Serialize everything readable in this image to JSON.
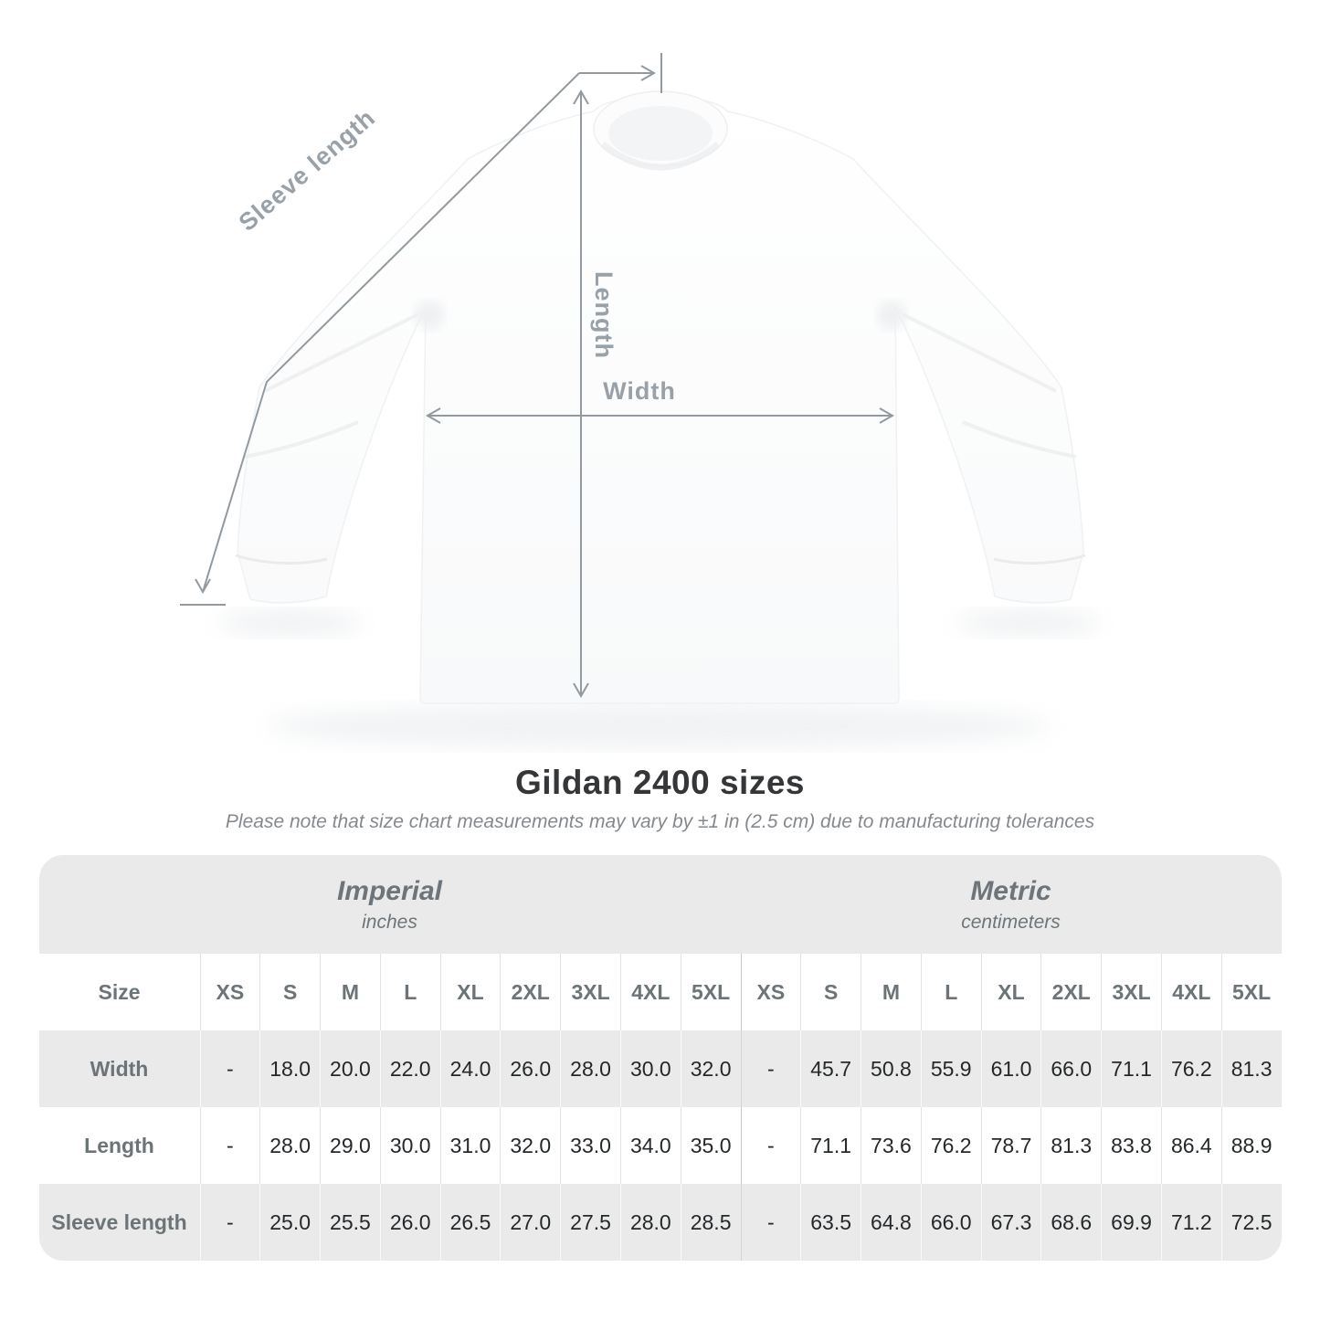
{
  "colors": {
    "measure_line": "#929aa0",
    "measure_label": "#99a1a8",
    "table_header_text": "#6c7478",
    "value_text": "#25282a",
    "band_gray": "#eaeaea",
    "title_text": "#343638",
    "subtitle_text": "#85898e"
  },
  "shirt_diagram": {
    "sleeve_length_label": "Sleeve length",
    "length_label": "Length",
    "width_label": "Width"
  },
  "header": {
    "title": "Gildan 2400 sizes",
    "subtitle": "Please note that size chart measurements may vary by ±1 in (2.5 cm) due to manufacturing tolerances"
  },
  "size_table": {
    "corner_label": "Size",
    "sections": [
      {
        "name": "Imperial",
        "unit": "inches",
        "sizes": [
          "XS",
          "S",
          "M",
          "L",
          "XL",
          "2XL",
          "3XL",
          "4XL",
          "5XL"
        ]
      },
      {
        "name": "Metric",
        "unit": "centimeters",
        "sizes": [
          "XS",
          "S",
          "M",
          "L",
          "XL",
          "2XL",
          "3XL",
          "4XL",
          "5XL"
        ]
      }
    ],
    "rows": [
      {
        "label": "Width",
        "values": [
          "-",
          "18.0",
          "20.0",
          "22.0",
          "24.0",
          "26.0",
          "28.0",
          "30.0",
          "32.0",
          "-",
          "45.7",
          "50.8",
          "55.9",
          "61.0",
          "66.0",
          "71.1",
          "76.2",
          "81.3"
        ]
      },
      {
        "label": "Length",
        "values": [
          "-",
          "28.0",
          "29.0",
          "30.0",
          "31.0",
          "32.0",
          "33.0",
          "34.0",
          "35.0",
          "-",
          "71.1",
          "73.6",
          "76.2",
          "78.7",
          "81.3",
          "83.8",
          "86.4",
          "88.9"
        ]
      },
      {
        "label": "Sleeve length",
        "values": [
          "-",
          "25.0",
          "25.5",
          "26.0",
          "26.5",
          "27.0",
          "27.5",
          "28.0",
          "28.5",
          "-",
          "63.5",
          "64.8",
          "66.0",
          "67.3",
          "68.6",
          "69.9",
          "71.2",
          "72.5"
        ]
      }
    ]
  },
  "chart_data": {
    "type": "table",
    "title": "Gildan 2400 sizes",
    "note": "Please note that size chart measurements may vary by ±1 in (2.5 cm) due to manufacturing tolerances",
    "sizes": [
      "XS",
      "S",
      "M",
      "L",
      "XL",
      "2XL",
      "3XL",
      "4XL",
      "5XL"
    ],
    "measurements": {
      "width_inches": [
        null,
        18.0,
        20.0,
        22.0,
        24.0,
        26.0,
        28.0,
        30.0,
        32.0
      ],
      "length_inches": [
        null,
        28.0,
        29.0,
        30.0,
        31.0,
        32.0,
        33.0,
        34.0,
        35.0
      ],
      "sleeve_length_inches": [
        null,
        25.0,
        25.5,
        26.0,
        26.5,
        27.0,
        27.5,
        28.0,
        28.5
      ],
      "width_cm": [
        null,
        45.7,
        50.8,
        55.9,
        61.0,
        66.0,
        71.1,
        76.2,
        81.3
      ],
      "length_cm": [
        null,
        71.1,
        73.6,
        76.2,
        78.7,
        81.3,
        83.8,
        86.4,
        88.9
      ],
      "sleeve_length_cm": [
        null,
        63.5,
        64.8,
        66.0,
        67.3,
        68.6,
        69.9,
        71.2,
        72.5
      ]
    }
  }
}
